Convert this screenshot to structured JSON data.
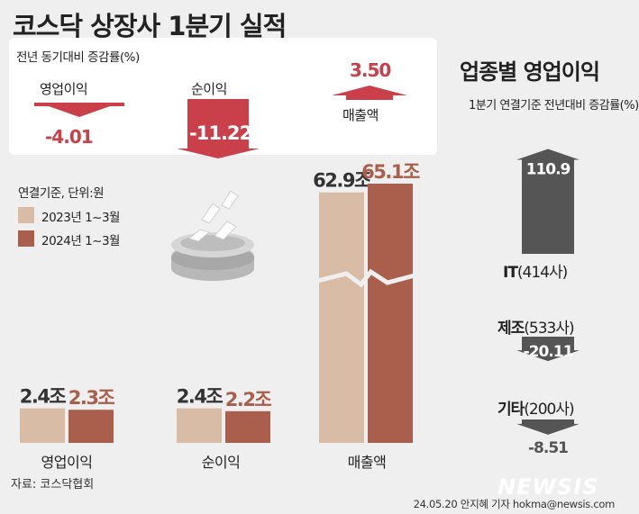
{
  "title": "코스닥 상장사 1분기 실적",
  "yoy": {
    "heading": "전년 동기대비 증감률(%)",
    "items": [
      {
        "label": "영업이익",
        "value": "-4.01"
      },
      {
        "label": "순이익",
        "value": "-11.22"
      },
      {
        "label": "매출액",
        "value": "3.50"
      }
    ]
  },
  "legend": {
    "heading": "연결기준, 단위:원",
    "items": [
      {
        "label": "2023년 1~3월",
        "color": "#d9bca5"
      },
      {
        "label": "2024년 1~3월",
        "color": "#a95f4b"
      }
    ]
  },
  "chart_data": [
    {
      "type": "bar",
      "categories": [
        "영업이익",
        "순이익",
        "매출액"
      ],
      "series": [
        {
          "name": "2023년 1~3월",
          "values": [
            2.4,
            2.4,
            62.9
          ],
          "labels": [
            "2.4조",
            "2.4조",
            "62.9조"
          ]
        },
        {
          "name": "2024년 1~3월",
          "values": [
            2.3,
            2.2,
            65.1
          ],
          "labels": [
            "2.3조",
            "2.2조",
            "65.1조"
          ]
        }
      ],
      "unit": "조원",
      "broken_axis": true
    },
    {
      "type": "bar",
      "title": "업종별 영업이익",
      "subtitle": "1분기 연결기준 전년대비 증감률(%)",
      "categories": [
        "IT(414사)",
        "제조(533사)",
        "기타(200사)"
      ],
      "values": [
        110.9,
        -20.11,
        -8.51
      ],
      "labels": [
        "110.9",
        "-20.11",
        "-8.51"
      ]
    }
  ],
  "sectors": [
    {
      "name": "IT",
      "count": "(414사)",
      "value": "110.9"
    },
    {
      "name": "제조",
      "count": "(533사)",
      "value": "-20.11"
    },
    {
      "name": "기타",
      "count": "(200사)",
      "value": "-8.51"
    }
  ],
  "source": "자료: 코스닥협회",
  "credit": "24.05.20 안지혜 기자 hokma@newsis.com",
  "watermark": "NEWSIS",
  "colors": {
    "neg": "#c9404a",
    "val2024": "#a95f4b",
    "val2023": "#d9bca5",
    "dark": "#333333",
    "arrow_gray": "#555555"
  }
}
